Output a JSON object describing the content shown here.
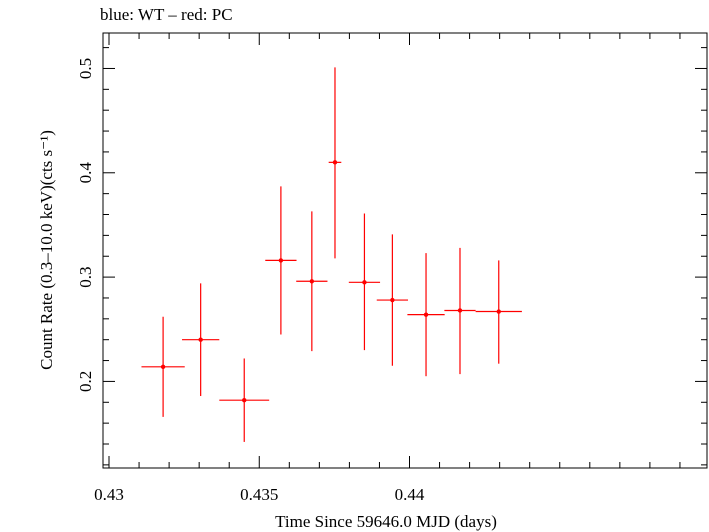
{
  "chart_data": {
    "type": "scatter",
    "title": "blue: WT – red: PC",
    "xlabel": "Time Since 59646.0 MJD (days)",
    "ylabel": "Count Rate (0.3–10.0 keV)(cts s⁻¹)",
    "xlim": [
      0.4298,
      0.4499
    ],
    "ylim": [
      0.117,
      0.534
    ],
    "x_ticks": [
      0.43,
      0.435,
      0.44
    ],
    "x_tick_labels": [
      "0.43",
      "0.435",
      "0.44"
    ],
    "y_ticks": [
      0.2,
      0.3,
      0.4,
      0.5
    ],
    "y_tick_labels": [
      "0.2",
      "0.3",
      "0.4",
      "0.5"
    ],
    "grid": false,
    "series": [
      {
        "color": "#ff0000",
        "points": [
          {
            "x": 0.4318,
            "y": 0.214,
            "xerr": 0.00072,
            "ylo": 0.166,
            "yhi": 0.262
          },
          {
            "x": 0.43305,
            "y": 0.24,
            "xerr": 0.00062,
            "ylo": 0.186,
            "yhi": 0.294
          },
          {
            "x": 0.4345,
            "y": 0.182,
            "xerr": 0.00083,
            "ylo": 0.142,
            "yhi": 0.222
          },
          {
            "x": 0.43572,
            "y": 0.316,
            "xerr": 0.00052,
            "ylo": 0.245,
            "yhi": 0.387
          },
          {
            "x": 0.43675,
            "y": 0.296,
            "xerr": 0.00052,
            "ylo": 0.229,
            "yhi": 0.363
          },
          {
            "x": 0.43752,
            "y": 0.41,
            "xerr": 0.00021,
            "ylo": 0.318,
            "yhi": 0.501
          },
          {
            "x": 0.4385,
            "y": 0.295,
            "xerr": 0.00052,
            "ylo": 0.23,
            "yhi": 0.361
          },
          {
            "x": 0.43943,
            "y": 0.278,
            "xerr": 0.00052,
            "ylo": 0.215,
            "yhi": 0.341
          },
          {
            "x": 0.44055,
            "y": 0.264,
            "xerr": 0.00062,
            "ylo": 0.205,
            "yhi": 0.323
          },
          {
            "x": 0.44168,
            "y": 0.268,
            "xerr": 0.00052,
            "ylo": 0.207,
            "yhi": 0.328
          },
          {
            "x": 0.44297,
            "y": 0.267,
            "xerr": 0.00077,
            "ylo": 0.217,
            "yhi": 0.316
          }
        ]
      }
    ]
  }
}
